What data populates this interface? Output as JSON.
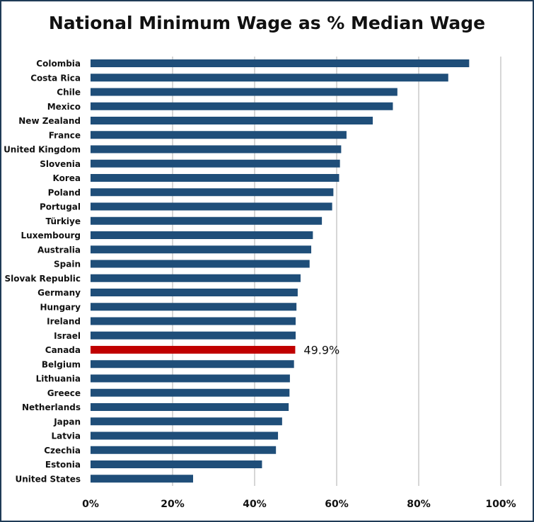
{
  "chart_data": {
    "type": "bar",
    "orientation": "horizontal",
    "title": "National Minimum Wage as % Median Wage",
    "xlabel": "",
    "ylabel": "",
    "xlim": [
      0,
      100
    ],
    "xticks": [
      0,
      20,
      40,
      60,
      80,
      100
    ],
    "tick_labels": [
      "0%",
      "20%",
      "40%",
      "60%",
      "80%",
      "100%"
    ],
    "grid": "vertical",
    "legend": "none",
    "categories": [
      "Colombia",
      "Costa Rica",
      "Chile",
      "Mexico",
      "New Zealand",
      "France",
      "United Kingdom",
      "Slovenia",
      "Korea",
      "Poland",
      "Portugal",
      "Türkiye",
      "Luxembourg",
      "Australia",
      "Spain",
      "Slovak Republic",
      "Germany",
      "Hungary",
      "Ireland",
      "Israel",
      "Canada",
      "Belgium",
      "Lithuania",
      "Greece",
      "Netherlands",
      "Japan",
      "Latvia",
      "Czechia",
      "Estonia",
      "United States"
    ],
    "values": [
      92.3,
      87.2,
      74.8,
      73.7,
      68.8,
      62.4,
      61.1,
      60.8,
      60.6,
      59.2,
      58.9,
      56.4,
      54.2,
      53.8,
      53.4,
      51.2,
      50.5,
      50.2,
      50.0,
      50.0,
      49.9,
      49.6,
      48.6,
      48.5,
      48.3,
      46.7,
      45.7,
      45.2,
      41.8,
      25.0
    ],
    "highlight": "Canada",
    "data_labels": [
      {
        "category": "Canada",
        "text": "49.9%"
      }
    ],
    "colors": {
      "bar": "#1f4e79",
      "highlight": "#c00000",
      "grid": "#c8c8c8"
    }
  }
}
